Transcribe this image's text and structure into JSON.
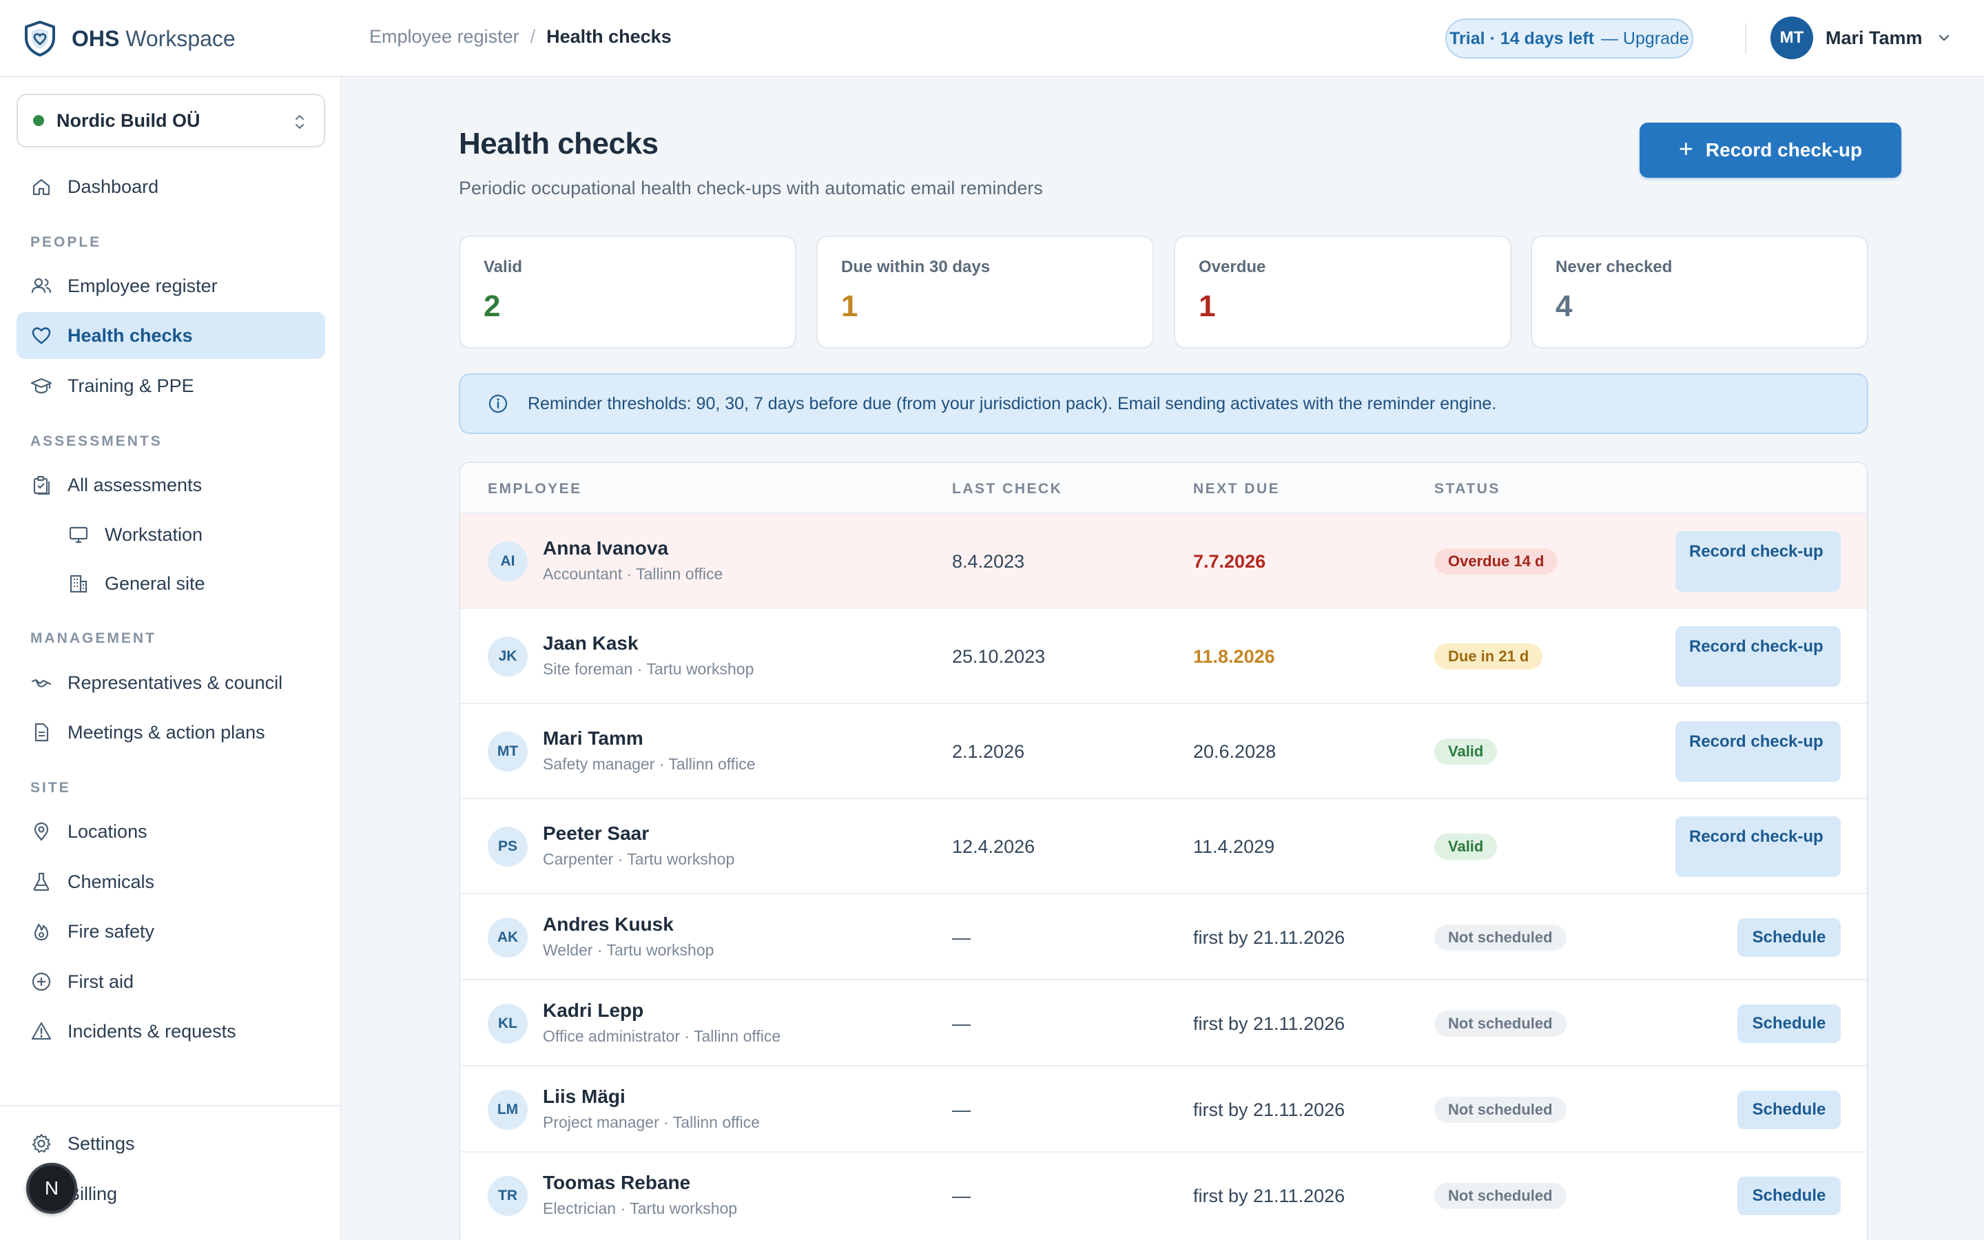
{
  "app": {
    "brand_bold": "OHS",
    "brand_rest": " Workspace",
    "logo_icon": "shield-heart-icon"
  },
  "breadcrumb": {
    "parent": "Employee register",
    "separator": "/",
    "current": "Health checks"
  },
  "trial": {
    "label": "Trial · 14 days left",
    "upgrade": "— Upgrade"
  },
  "user": {
    "initials": "MT",
    "name": "Mari Tamm"
  },
  "org": {
    "name": "Nordic Build OÜ",
    "status_color": "#2e8b46"
  },
  "sidebar": {
    "dashboard": "Dashboard",
    "sections": {
      "people": "PEOPLE",
      "assessments": "ASSESSMENTS",
      "management": "MANAGEMENT",
      "site": "SITE"
    },
    "items": [
      {
        "label": "Employee register",
        "icon": "users-icon"
      },
      {
        "label": "Health checks",
        "icon": "heart-icon",
        "active": true
      },
      {
        "label": "Training & PPE",
        "icon": "graduation-cap-icon"
      },
      {
        "label": "All assessments",
        "icon": "clipboard-icon"
      },
      {
        "label": "Workstation",
        "icon": "monitor-icon"
      },
      {
        "label": "General site",
        "icon": "building-icon"
      },
      {
        "label": "Representatives & council",
        "icon": "handshake-icon"
      },
      {
        "label": "Meetings & action plans",
        "icon": "document-icon"
      },
      {
        "label": "Locations",
        "icon": "map-pin-icon"
      },
      {
        "label": "Chemicals",
        "icon": "flask-icon"
      },
      {
        "label": "Fire safety",
        "icon": "flame-icon"
      },
      {
        "label": "First aid",
        "icon": "plus-circle-icon"
      },
      {
        "label": "Incidents & requests",
        "icon": "warning-icon"
      }
    ],
    "settings": "Settings",
    "billing": "Billing",
    "fab_letter": "N"
  },
  "page": {
    "title": "Health checks",
    "subtitle": "Periodic occupational health check-ups with automatic email reminders",
    "primary_action": "Record check-up"
  },
  "stats": [
    {
      "label": "Valid",
      "value": "2",
      "color": "#2e7d3a"
    },
    {
      "label": "Due within 30 days",
      "value": "1",
      "color": "#c48624"
    },
    {
      "label": "Overdue",
      "value": "1",
      "color": "#b3261e"
    },
    {
      "label": "Never checked",
      "value": "4",
      "color": "#5f7386"
    }
  ],
  "info": {
    "text": "Reminder thresholds: 90, 30, 7 days before due (from your jurisdiction pack). Email sending activates with the reminder engine."
  },
  "table": {
    "columns": [
      "EMPLOYEE",
      "LAST CHECK",
      "NEXT DUE",
      "STATUS"
    ],
    "rows": [
      {
        "initials": "AI",
        "name": "Anna Ivanova",
        "meta": "Accountant · Tallinn office",
        "last": "8.4.2023",
        "next": "7.7.2026",
        "status": "Overdue 14 d",
        "action": "Record check-up"
      },
      {
        "initials": "JK",
        "name": "Jaan Kask",
        "meta": "Site foreman · Tartu workshop",
        "last": "25.10.2023",
        "next": "11.8.2026",
        "status": "Due in 21 d",
        "action": "Record check-up"
      },
      {
        "initials": "MT",
        "name": "Mari Tamm",
        "meta": "Safety manager · Tallinn office",
        "last": "2.1.2026",
        "next": "20.6.2028",
        "status": "Valid",
        "action": "Record check-up"
      },
      {
        "initials": "PS",
        "name": "Peeter Saar",
        "meta": "Carpenter · Tartu workshop",
        "last": "12.4.2026",
        "next": "11.4.2029",
        "status": "Valid",
        "action": "Record check-up"
      },
      {
        "initials": "AK",
        "name": "Andres Kuusk",
        "meta": "Welder · Tartu workshop",
        "last": "—",
        "next": "first by 21.11.2026",
        "status": "Not scheduled",
        "action": "Schedule"
      },
      {
        "initials": "KL",
        "name": "Kadri Lepp",
        "meta": "Office administrator · Tallinn office",
        "last": "—",
        "next": "first by 21.11.2026",
        "status": "Not scheduled",
        "action": "Schedule"
      },
      {
        "initials": "LM",
        "name": "Liis Mägi",
        "meta": "Project manager · Tallinn office",
        "last": "—",
        "next": "first by 21.11.2026",
        "status": "Not scheduled",
        "action": "Schedule"
      },
      {
        "initials": "TR",
        "name": "Toomas Rebane",
        "meta": "Electrician · Tartu workshop",
        "last": "—",
        "next": "first by 21.11.2026",
        "status": "Not scheduled",
        "action": "Schedule"
      }
    ]
  }
}
